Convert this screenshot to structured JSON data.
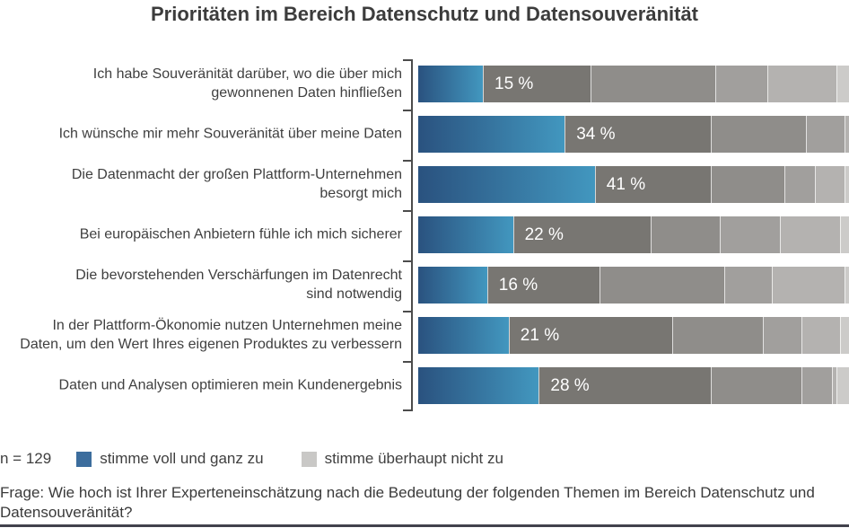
{
  "title": "Prioritäten im Bereich Datenschutz und Datensouveränität",
  "chart_data": {
    "type": "bar",
    "orientation": "horizontal",
    "stacked": true,
    "x_axis": {
      "min": 0,
      "max": 100,
      "unit": "%",
      "visible_ticks": false
    },
    "scale_note": "6-stufige Zustimmungsskala von 'stimme voll und ganz zu' bis 'stimme überhaupt nicht zu'",
    "sample_size_label": "n = 129",
    "legend": [
      {
        "label": "stimme voll und ganz zu",
        "color": "#3c6d9d"
      },
      {
        "label": "stimme überhaupt nicht zu",
        "color": "#c9c8c6"
      }
    ],
    "segment_colors": {
      "agree_gradient_start": "#2a527f",
      "agree_gradient_end": "#4297bf",
      "grays": [
        "#787672",
        "#8f8d8a",
        "#a19f9d",
        "#b4b2b0",
        "#cccbc9"
      ]
    },
    "axis_color": "#4c4c4c",
    "value_label_color": "#ffffff",
    "rows": [
      {
        "label": "Ich habe Souveränität darüber, wo die über mich\ngewonnenen Daten hinfließen",
        "value_label": "15 %",
        "agree_pct": 15,
        "segments": [
          15,
          25,
          29,
          12,
          16,
          3
        ]
      },
      {
        "label": "Ich wünsche mir mehr Souveränität über meine Daten",
        "value_label": "34 %",
        "agree_pct": 34,
        "segments": [
          34,
          34,
          22,
          9,
          1,
          0
        ]
      },
      {
        "label": "Die Datenmacht der großen Plattform-Unternehmen\nbesorgt mich",
        "value_label": "41 %",
        "agree_pct": 41,
        "segments": [
          41,
          27,
          17,
          7,
          7,
          1
        ]
      },
      {
        "label": "Bei europäischen Anbietern fühle ich mich sicherer",
        "value_label": "22 %",
        "agree_pct": 22,
        "segments": [
          22,
          32,
          16,
          14,
          14,
          2
        ]
      },
      {
        "label": "Die bevorstehenden Verschärfungen im Datenrecht\nsind notwendig",
        "value_label": "16 %",
        "agree_pct": 16,
        "segments": [
          16,
          26,
          29,
          11,
          17,
          1
        ]
      },
      {
        "label": "In der Plattform-Ökonomie nutzen Unternehmen meine\nDaten, um den Wert Ihres eigenen Produktes zu verbessern",
        "value_label": "21 %",
        "agree_pct": 21,
        "segments": [
          21,
          38,
          21,
          9,
          9,
          2
        ]
      },
      {
        "label": "Daten und Analysen optimieren mein Kundenergebnis",
        "value_label": "28 %",
        "agree_pct": 28,
        "segments": [
          28,
          40,
          21,
          7,
          1,
          3
        ]
      }
    ]
  },
  "footer": {
    "question": "Frage: Wie hoch ist Ihrer Experteneinschätzung nach die Bedeutung der folgenden Themen im Bereich Datenschutz und Datensouveränität?"
  }
}
